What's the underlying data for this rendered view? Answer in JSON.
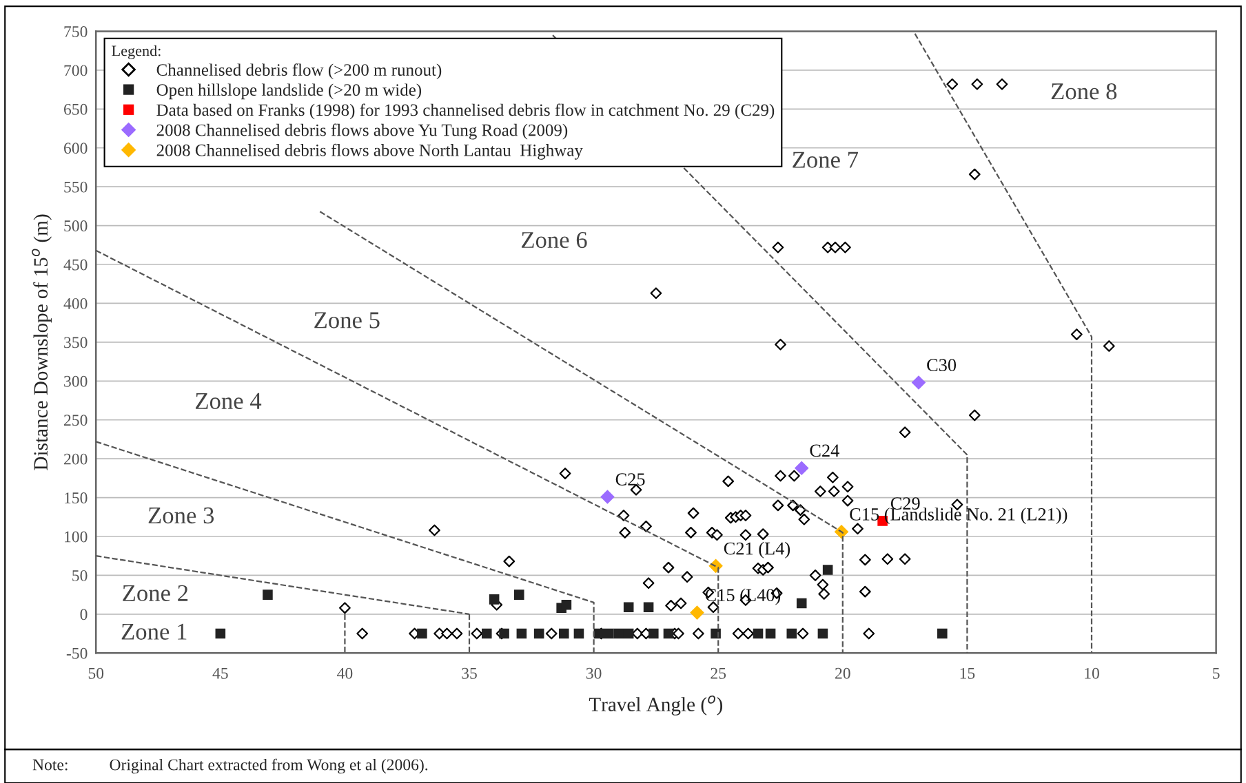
{
  "chart_data": {
    "type": "scatter",
    "xlabel": "Travel Angle ($^{o}$)",
    "ylabel": "Distance Downslope of 15$^{o}$ (m)",
    "legend_title": "Legend:",
    "legend": "top left",
    "grid": "y",
    "xlim": [
      50,
      5
    ],
    "xticks": [
      50,
      45,
      40,
      35,
      30,
      25,
      20,
      15,
      10,
      5
    ],
    "ylim": [
      -50,
      750
    ],
    "yticks": [
      -50,
      0,
      50,
      100,
      150,
      200,
      250,
      300,
      350,
      400,
      450,
      500,
      550,
      600,
      650,
      700,
      750
    ],
    "series": [
      {
        "type": "line",
        "color": "#555555",
        "line_style": "dashed",
        "marker": "none",
        "x": [
          50,
          35
        ],
        "values": [
          75,
          0
        ]
      },
      {
        "type": "line",
        "color": "#555555",
        "line_style": "dashed",
        "marker": "none",
        "x": [
          40,
          40
        ],
        "values": [
          0,
          -50
        ]
      },
      {
        "type": "line",
        "color": "#555555",
        "line_style": "dashed",
        "marker": "none",
        "x": [
          35,
          35
        ],
        "values": [
          0,
          -50
        ]
      },
      {
        "type": "line",
        "color": "#555555",
        "line_style": "dashed",
        "marker": "none",
        "x": [
          50,
          30,
          30
        ],
        "values": [
          222,
          15,
          -50
        ]
      },
      {
        "type": "line",
        "color": "#555555",
        "line_style": "dashed",
        "marker": "none",
        "x": [
          50,
          25,
          25
        ],
        "values": [
          468,
          60,
          -50
        ]
      },
      {
        "type": "line",
        "color": "#555555",
        "line_style": "dashed",
        "marker": "none",
        "x": [
          41,
          20,
          20
        ],
        "values": [
          518,
          105,
          -50
        ]
      },
      {
        "type": "line",
        "color": "#555555",
        "line_style": "dashed",
        "marker": "none",
        "x": [
          31.65,
          15,
          15
        ],
        "values": [
          745,
          205,
          -50
        ]
      },
      {
        "type": "line",
        "color": "#555555",
        "line_style": "dashed",
        "marker": "none",
        "x": [
          17.1,
          10,
          10
        ],
        "values": [
          747,
          357,
          -50
        ]
      },
      {
        "name": "Channelised debris flow (>200 m runout)",
        "color": "#000000",
        "marker": "diamond",
        "x": [
          39.3,
          37.2,
          36.2,
          35.9,
          35.5,
          34.7,
          33.7,
          31.7,
          29.7,
          28.25,
          27.9,
          26.75,
          26.6,
          25.8,
          24.2,
          23.8,
          21.6,
          18.95,
          28.3,
          28.8,
          28.75,
          27.9,
          24.6,
          26.0,
          26.1,
          25.25,
          25.05,
          24.5,
          24.3,
          24.1,
          23.9,
          23.9,
          23.2,
          27.0,
          26.25,
          27.8,
          25.4,
          26.9,
          26.5,
          25.2,
          23.9,
          23.4,
          23.2,
          23.0,
          22.65,
          22.6,
          22.5,
          21.95,
          22.0,
          21.7,
          21.55,
          20.4,
          20.9,
          20.35,
          19.8,
          19.8,
          19.4,
          21.1,
          20.8,
          20.75,
          19.1,
          18.2,
          17.5,
          19.1,
          15.4,
          17.5,
          14.7,
          31.15,
          36.4,
          33.4,
          40.0,
          33.9,
          27.5,
          15.6,
          14.6,
          13.6,
          14.7,
          22.6,
          20.6,
          20.3,
          19.9,
          22.5,
          10.6,
          9.3
        ],
        "values": [
          -25,
          -25,
          -25,
          -25,
          -25,
          -25,
          -25,
          -25,
          -25,
          -25,
          -25,
          -25,
          -25,
          -25,
          -25,
          -25,
          -25,
          -25,
          160,
          127,
          105,
          113,
          171,
          130,
          105,
          105,
          102,
          124,
          125,
          127,
          127,
          102,
          103,
          60,
          48,
          40,
          28,
          11,
          14,
          9,
          18,
          59,
          57,
          60,
          27,
          140,
          178,
          178,
          140,
          134,
          122,
          176,
          158,
          158,
          164,
          146,
          110,
          50,
          38,
          26,
          70,
          71,
          71,
          29,
          141,
          234,
          256,
          181,
          108,
          68,
          8,
          12,
          413,
          682,
          682,
          682,
          566,
          472,
          472,
          472,
          472,
          347,
          360,
          345
        ]
      },
      {
        "name": "Open hillslope landslide (>20 m wide)",
        "color": "#222222",
        "marker": "square",
        "x": [
          45.0,
          36.9,
          34.3,
          33.6,
          32.9,
          32.2,
          31.2,
          30.6,
          29.8,
          29.4,
          29.0,
          28.6,
          27.6,
          27.0,
          25.1,
          23.4,
          22.9,
          22.05,
          20.8,
          16.0,
          43.1,
          34.0,
          33.0,
          31.3,
          31.1,
          28.6,
          27.8,
          20.6,
          21.65
        ],
        "values": [
          -25,
          -25,
          -25,
          -25,
          -25,
          -25,
          -25,
          -25,
          -25,
          -25,
          -25,
          -25,
          -25,
          -25,
          -25,
          -25,
          -25,
          -25,
          -25,
          -25,
          25,
          19,
          25,
          8,
          12,
          9,
          9,
          57,
          14
        ]
      },
      {
        "name": "Data based on Franks (1998) for 1993 channelised debris flow in catchment No. 29 (C29)",
        "color": "#ff0000",
        "marker": "square",
        "x": [
          18.4
        ],
        "values": [
          120
        ]
      },
      {
        "name": "2008 Channelised debris flows above Yu Tung Road (2009)",
        "color": "#9b6bff",
        "marker": "diamond",
        "x": [
          29.45,
          21.65,
          16.95
        ],
        "values": [
          151,
          188,
          298
        ]
      },
      {
        "name": "2008 Channelised debris flows above North Lantau  Highway",
        "color": "#ffb800",
        "marker": "diamond",
        "x": [
          25.1,
          25.85,
          20.05
        ],
        "values": [
          62,
          2,
          106
        ]
      }
    ],
    "annotations": [
      {
        "text": "C25",
        "x": 29.45,
        "y": 151
      },
      {
        "text": "C24",
        "x": 21.65,
        "y": 188
      },
      {
        "text": "C30",
        "x": 16.95,
        "y": 298
      },
      {
        "text": "C29",
        "x": 18.4,
        "y": 120
      },
      {
        "text": "C21 (L4)",
        "x": 25.1,
        "y": 62
      },
      {
        "text": "C15 (L40)",
        "x": 25.85,
        "y": 2
      },
      {
        "text": "C15 (Landslide No. 21 (L21))",
        "x": 20.05,
        "y": 106
      },
      "Zone 1",
      "Zone 2",
      "Zone 3",
      "Zone 4",
      "Zone 5",
      "Zone 6",
      "Zone 7",
      "Zone 8",
      "Note:          Original Chart extracted from Wong et al (2006)."
    ]
  }
}
